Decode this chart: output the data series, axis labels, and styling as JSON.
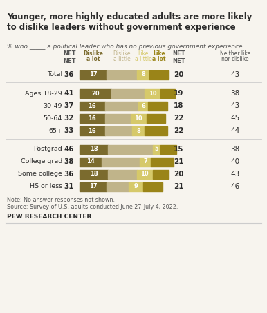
{
  "title": "Younger, more highly educated adults are more likely\nto dislike leaders without government experience",
  "subtitle": "% who _____ a political leader who has no previous government experience",
  "categories": [
    "Total",
    "Ages 18-29",
    "30-49",
    "50-64",
    "65+",
    "Postgrad",
    "College grad",
    "Some college",
    "HS or less"
  ],
  "dislike_net": [
    36,
    41,
    37,
    32,
    33,
    46,
    38,
    36,
    31
  ],
  "dislike_alot": [
    17,
    20,
    16,
    16,
    16,
    18,
    14,
    18,
    17
  ],
  "dislike_little": [
    19,
    21,
    21,
    16,
    17,
    28,
    24,
    18,
    14
  ],
  "like_little": [
    8,
    10,
    6,
    10,
    8,
    5,
    7,
    10,
    9
  ],
  "like_alot": [
    12,
    9,
    12,
    12,
    14,
    10,
    14,
    10,
    12
  ],
  "like_net": [
    20,
    19,
    18,
    22,
    22,
    15,
    21,
    20,
    21
  ],
  "neither": [
    43,
    38,
    43,
    45,
    44,
    38,
    40,
    43,
    46
  ],
  "colors": {
    "dislike_alot": "#7B6B2E",
    "dislike_little": "#C0B48A",
    "like_little": "#D6C96A",
    "like_alot": "#9A8418"
  },
  "header_color_dislike_alot": "#7B6B2E",
  "header_color_dislike_little": "#C0B48A",
  "header_color_like_little": "#D6C96A",
  "header_color_like_alot": "#9A8418",
  "header_color_net": "#7B6B2E",
  "note1": "Note: No answer responses not shown.",
  "note2": "Source: Survey of U.S. adults conducted June 27-July 4, 2022.",
  "footer": "PEW RESEARCH CENTER",
  "bg_color": "#F7F4EE",
  "text_color": "#2B2B2B",
  "separator_color": "#CCCCCC"
}
